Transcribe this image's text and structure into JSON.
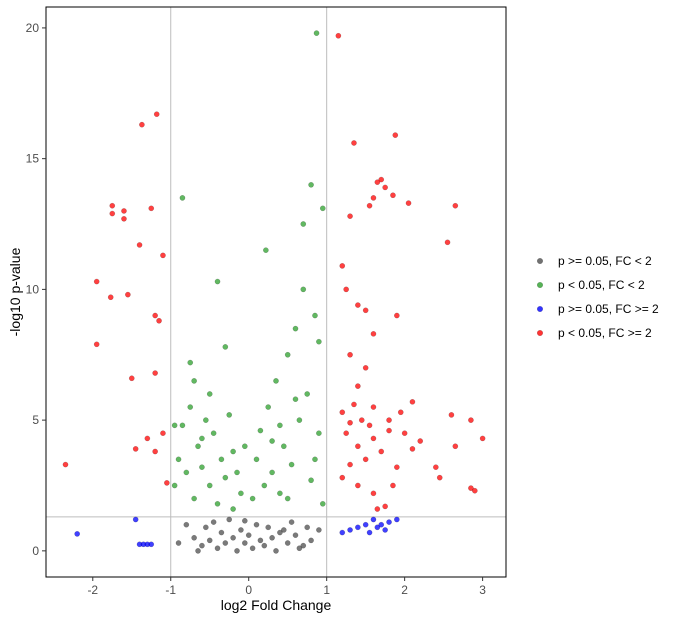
{
  "chart_data": {
    "type": "scatter",
    "title": "",
    "xlabel": "log2 Fold Change",
    "ylabel": "-log10 p-value",
    "xlim": [
      -2.6,
      3.3
    ],
    "ylim": [
      -1.0,
      20.8
    ],
    "x_ticks": [
      -2,
      -1,
      0,
      1,
      2,
      3
    ],
    "x_tick_labels": [
      "-2",
      "-1",
      "0",
      "1",
      "2",
      "3"
    ],
    "y_ticks": [
      0,
      5,
      10,
      15,
      20
    ],
    "y_tick_labels": [
      "0",
      "5",
      "10",
      "15",
      "20"
    ],
    "reference_lines": {
      "x": [
        -1,
        1
      ],
      "y": [
        1.3
      ]
    },
    "grid": false,
    "legend_position": "right",
    "series": [
      {
        "name": "p >= 0.05, FC < 2",
        "color": "#4d4d4d",
        "points": [
          [
            -0.9,
            0.3
          ],
          [
            -0.8,
            1.0
          ],
          [
            -0.7,
            0.5
          ],
          [
            -0.6,
            0.2
          ],
          [
            -0.55,
            0.9
          ],
          [
            -0.5,
            0.4
          ],
          [
            -0.45,
            1.1
          ],
          [
            -0.4,
            0.1
          ],
          [
            -0.35,
            0.7
          ],
          [
            -0.3,
            0.3
          ],
          [
            -0.25,
            1.2
          ],
          [
            -0.2,
            0.5
          ],
          [
            -0.15,
            0.0
          ],
          [
            -0.1,
            0.8
          ],
          [
            -0.05,
            0.3
          ],
          [
            0.0,
            0.6
          ],
          [
            0.05,
            0.1
          ],
          [
            0.1,
            1.0
          ],
          [
            0.15,
            0.4
          ],
          [
            0.2,
            0.2
          ],
          [
            0.25,
            0.9
          ],
          [
            0.3,
            0.5
          ],
          [
            0.35,
            0.0
          ],
          [
            0.4,
            0.7
          ],
          [
            0.5,
            0.3
          ],
          [
            0.55,
            1.1
          ],
          [
            0.6,
            0.6
          ],
          [
            0.7,
            0.2
          ],
          [
            0.75,
            0.9
          ],
          [
            0.8,
            0.4
          ],
          [
            0.9,
            0.8
          ],
          [
            -0.65,
            0.0
          ],
          [
            0.45,
            0.8
          ],
          [
            -0.05,
            1.15
          ],
          [
            0.65,
            0.1
          ]
        ]
      },
      {
        "name": "p < 0.05, FC < 2",
        "color": "#2ca02c",
        "points": [
          [
            -0.95,
            2.5
          ],
          [
            -0.9,
            3.5
          ],
          [
            -0.85,
            4.8
          ],
          [
            -0.8,
            3.0
          ],
          [
            -0.75,
            5.5
          ],
          [
            -0.7,
            6.5
          ],
          [
            -0.7,
            2.0
          ],
          [
            -0.65,
            4.0
          ],
          [
            -0.6,
            3.2
          ],
          [
            -0.55,
            5.0
          ],
          [
            -0.5,
            2.5
          ],
          [
            -0.45,
            4.5
          ],
          [
            -0.4,
            1.8
          ],
          [
            -0.35,
            3.5
          ],
          [
            -0.3,
            2.8
          ],
          [
            -0.25,
            5.2
          ],
          [
            -0.2,
            1.6
          ],
          [
            -0.15,
            3.0
          ],
          [
            -0.1,
            2.2
          ],
          [
            -0.05,
            4.0
          ],
          [
            -0.85,
            13.5
          ],
          [
            -0.4,
            10.3
          ],
          [
            -0.3,
            7.8
          ],
          [
            -0.75,
            7.2
          ],
          [
            0.05,
            2.0
          ],
          [
            0.1,
            3.5
          ],
          [
            0.15,
            4.6
          ],
          [
            0.2,
            2.5
          ],
          [
            0.25,
            5.5
          ],
          [
            0.3,
            3.0
          ],
          [
            0.35,
            6.5
          ],
          [
            0.4,
            2.2
          ],
          [
            0.45,
            4.0
          ],
          [
            0.5,
            7.5
          ],
          [
            0.55,
            3.3
          ],
          [
            0.6,
            8.5
          ],
          [
            0.65,
            5.0
          ],
          [
            0.7,
            10.0
          ],
          [
            0.75,
            6.0
          ],
          [
            0.8,
            14.0
          ],
          [
            0.8,
            2.7
          ],
          [
            0.85,
            9.0
          ],
          [
            0.9,
            4.5
          ],
          [
            0.95,
            13.1
          ],
          [
            0.95,
            1.8
          ],
          [
            0.87,
            19.8
          ],
          [
            0.22,
            11.5
          ],
          [
            0.7,
            12.5
          ],
          [
            0.9,
            8.0
          ],
          [
            0.6,
            5.8
          ],
          [
            0.4,
            4.8
          ],
          [
            -0.6,
            4.3
          ],
          [
            -0.2,
            3.8
          ],
          [
            0.3,
            4.2
          ],
          [
            0.5,
            2.0
          ],
          [
            0.85,
            3.5
          ],
          [
            -0.95,
            4.8
          ],
          [
            -0.5,
            6.0
          ]
        ]
      },
      {
        "name": "p >= 0.05, FC >= 2",
        "color": "#0000ff",
        "points": [
          [
            -2.2,
            0.65
          ],
          [
            -1.45,
            1.2
          ],
          [
            -1.4,
            0.25
          ],
          [
            -1.35,
            0.25
          ],
          [
            -1.3,
            0.25
          ],
          [
            -1.25,
            0.25
          ],
          [
            1.2,
            0.7
          ],
          [
            1.3,
            0.8
          ],
          [
            1.4,
            0.9
          ],
          [
            1.5,
            1.0
          ],
          [
            1.55,
            0.7
          ],
          [
            1.6,
            1.2
          ],
          [
            1.65,
            0.9
          ],
          [
            1.7,
            1.0
          ],
          [
            1.75,
            0.8
          ],
          [
            1.8,
            1.1
          ],
          [
            1.9,
            1.2
          ]
        ]
      },
      {
        "name": "p < 0.05, FC >= 2",
        "color": "#ff0000",
        "points": [
          [
            -1.18,
            16.7
          ],
          [
            -1.37,
            16.3
          ],
          [
            -1.75,
            13.2
          ],
          [
            -1.75,
            12.9
          ],
          [
            -1.6,
            13.0
          ],
          [
            -1.6,
            12.7
          ],
          [
            -1.25,
            13.1
          ],
          [
            -1.4,
            11.7
          ],
          [
            -1.1,
            11.3
          ],
          [
            -1.95,
            10.3
          ],
          [
            -1.77,
            9.7
          ],
          [
            -1.55,
            9.8
          ],
          [
            -1.2,
            9.0
          ],
          [
            -1.15,
            8.8
          ],
          [
            -1.95,
            7.9
          ],
          [
            -1.5,
            6.6
          ],
          [
            -1.2,
            6.8
          ],
          [
            -2.35,
            3.3
          ],
          [
            -1.45,
            3.9
          ],
          [
            -1.3,
            4.3
          ],
          [
            -1.2,
            3.8
          ],
          [
            -1.1,
            4.5
          ],
          [
            -1.05,
            2.6
          ],
          [
            1.15,
            19.7
          ],
          [
            1.35,
            15.6
          ],
          [
            1.88,
            15.9
          ],
          [
            1.7,
            14.2
          ],
          [
            1.65,
            14.1
          ],
          [
            1.75,
            13.9
          ],
          [
            1.6,
            13.5
          ],
          [
            1.85,
            13.6
          ],
          [
            1.55,
            13.2
          ],
          [
            2.05,
            13.3
          ],
          [
            2.65,
            13.2
          ],
          [
            1.3,
            12.8
          ],
          [
            2.55,
            11.8
          ],
          [
            1.2,
            10.9
          ],
          [
            1.25,
            10.0
          ],
          [
            1.4,
            9.4
          ],
          [
            1.5,
            9.2
          ],
          [
            1.6,
            8.3
          ],
          [
            1.9,
            9.0
          ],
          [
            1.3,
            7.5
          ],
          [
            1.5,
            7.0
          ],
          [
            1.4,
            6.3
          ],
          [
            1.2,
            5.3
          ],
          [
            1.3,
            4.9
          ],
          [
            1.45,
            5.0
          ],
          [
            1.35,
            5.6
          ],
          [
            1.6,
            5.5
          ],
          [
            1.8,
            5.0
          ],
          [
            2.1,
            5.7
          ],
          [
            1.25,
            4.5
          ],
          [
            1.4,
            4.0
          ],
          [
            1.6,
            4.3
          ],
          [
            1.8,
            4.6
          ],
          [
            2.0,
            4.5
          ],
          [
            2.2,
            4.2
          ],
          [
            2.6,
            5.2
          ],
          [
            2.85,
            5.0
          ],
          [
            2.65,
            4.0
          ],
          [
            3.0,
            4.3
          ],
          [
            1.5,
            3.5
          ],
          [
            1.7,
            3.8
          ],
          [
            1.9,
            3.2
          ],
          [
            2.1,
            3.9
          ],
          [
            2.4,
            3.2
          ],
          [
            2.45,
            2.8
          ],
          [
            2.85,
            2.4
          ],
          [
            2.9,
            2.3
          ],
          [
            1.2,
            2.8
          ],
          [
            1.4,
            2.5
          ],
          [
            1.6,
            2.2
          ],
          [
            1.75,
            1.7
          ],
          [
            1.65,
            1.6
          ],
          [
            1.85,
            2.5
          ],
          [
            1.3,
            3.3
          ],
          [
            1.55,
            4.8
          ],
          [
            1.95,
            5.3
          ]
        ]
      }
    ]
  }
}
